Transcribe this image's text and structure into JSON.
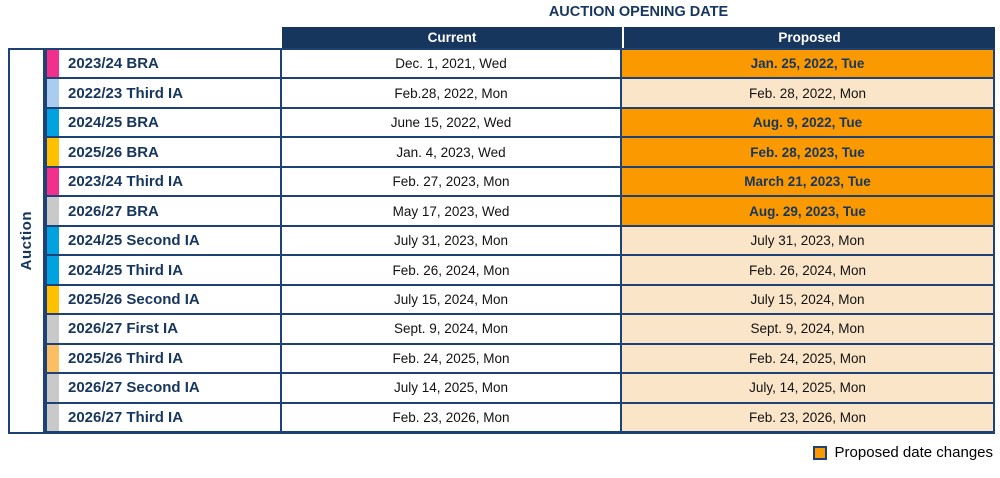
{
  "title": "AUCTION OPENING DATE",
  "side_label": "Auction",
  "columns": {
    "current": "Current",
    "proposed": "Proposed"
  },
  "legend": {
    "label": "Proposed date changes",
    "swatch_color": "#FA9A00"
  },
  "colors": {
    "navy_text": "#17365D",
    "border_navy": "#1E4176",
    "changed_orange": "#FA9A00",
    "unchanged_peach": "#FBE5C8",
    "chip_pink": "#F0308C",
    "chip_light_blue": "#A9CCEF",
    "chip_cyan": "#00A3E0",
    "chip_amber": "#FFC000",
    "chip_gray": "#C9C9C9",
    "chip_light_orange": "#FBBE62"
  },
  "rows": [
    {
      "label": "2023/24 BRA",
      "chip_color": "#F0308C",
      "current": "Dec. 1, 2021, Wed",
      "proposed": "Jan. 25, 2022, Tue",
      "changed": true
    },
    {
      "label": "2022/23 Third IA",
      "chip_color": "#A9CCEF",
      "current": "Feb.28, 2022, Mon",
      "proposed": "Feb. 28, 2022, Mon",
      "changed": false
    },
    {
      "label": "2024/25 BRA",
      "chip_color": "#00A3E0",
      "current": "June 15, 2022, Wed",
      "proposed": "Aug. 9, 2022, Tue",
      "changed": true
    },
    {
      "label": "2025/26 BRA",
      "chip_color": "#FFC000",
      "current": "Jan. 4, 2023, Wed",
      "proposed": "Feb. 28, 2023, Tue",
      "changed": true
    },
    {
      "label": "2023/24 Third IA",
      "chip_color": "#F0308C",
      "current": "Feb. 27, 2023, Mon",
      "proposed": "March 21, 2023, Tue",
      "changed": true
    },
    {
      "label": "2026/27 BRA",
      "chip_color": "#C9C9C9",
      "current": "May 17, 2023, Wed",
      "proposed": "Aug. 29, 2023, Tue",
      "changed": true
    },
    {
      "label": "2024/25 Second IA",
      "chip_color": "#00A3E0",
      "current": "July 31, 2023, Mon",
      "proposed": "July 31, 2023, Mon",
      "changed": false
    },
    {
      "label": "2024/25 Third IA",
      "chip_color": "#00A3E0",
      "current": "Feb. 26, 2024, Mon",
      "proposed": "Feb. 26, 2024, Mon",
      "changed": false
    },
    {
      "label": "2025/26 Second IA",
      "chip_color": "#FFC000",
      "current": "July 15, 2024, Mon",
      "proposed": "July 15, 2024, Mon",
      "changed": false
    },
    {
      "label": "2026/27 First IA",
      "chip_color": "#C9C9C9",
      "current": "Sept. 9, 2024, Mon",
      "proposed": "Sept. 9, 2024, Mon",
      "changed": false
    },
    {
      "label": "2025/26 Third IA",
      "chip_color": "#FBBE62",
      "current": "Feb. 24, 2025, Mon",
      "proposed": "Feb. 24, 2025, Mon",
      "changed": false
    },
    {
      "label": "2026/27 Second IA",
      "chip_color": "#C9C9C9",
      "current": "July 14, 2025, Mon",
      "proposed": "July, 14, 2025, Mon",
      "changed": false
    },
    {
      "label": "2026/27 Third IA",
      "chip_color": "#C9C9C9",
      "current": "Feb. 23, 2026, Mon",
      "proposed": "Feb. 23, 2026, Mon",
      "changed": false
    }
  ],
  "chart_data": {
    "type": "table",
    "title": "AUCTION OPENING DATE",
    "row_group_label": "Auction",
    "columns": [
      "Auction",
      "Current",
      "Proposed"
    ],
    "rows": [
      [
        "2023/24 BRA",
        "Dec. 1, 2021, Wed",
        "Jan. 25, 2022, Tue"
      ],
      [
        "2022/23 Third IA",
        "Feb.28, 2022, Mon",
        "Feb. 28, 2022, Mon"
      ],
      [
        "2024/25 BRA",
        "June 15, 2022, Wed",
        "Aug. 9, 2022, Tue"
      ],
      [
        "2025/26 BRA",
        "Jan. 4, 2023, Wed",
        "Feb. 28, 2023, Tue"
      ],
      [
        "2023/24 Third IA",
        "Feb. 27, 2023, Mon",
        "March 21, 2023, Tue"
      ],
      [
        "2026/27 BRA",
        "May 17, 2023, Wed",
        "Aug. 29, 2023, Tue"
      ],
      [
        "2024/25 Second IA",
        "July 31, 2023, Mon",
        "July 31, 2023, Mon"
      ],
      [
        "2024/25 Third IA",
        "Feb. 26, 2024, Mon",
        "Feb. 26, 2024, Mon"
      ],
      [
        "2025/26 Second IA",
        "July 15, 2024, Mon",
        "July 15, 2024, Mon"
      ],
      [
        "2026/27 First IA",
        "Sept. 9, 2024, Mon",
        "Sept. 9, 2024, Mon"
      ],
      [
        "2025/26 Third IA",
        "Feb. 24, 2025, Mon",
        "Feb. 24, 2025, Mon"
      ],
      [
        "2026/27 Second IA",
        "July 14, 2025, Mon",
        "July, 14, 2025, Mon"
      ],
      [
        "2026/27 Third IA",
        "Feb. 23, 2026, Mon",
        "Feb. 23, 2026, Mon"
      ]
    ],
    "proposed_date_changed": [
      true,
      false,
      true,
      true,
      true,
      true,
      false,
      false,
      false,
      false,
      false,
      false,
      false
    ],
    "legend": "Proposed date changes"
  }
}
